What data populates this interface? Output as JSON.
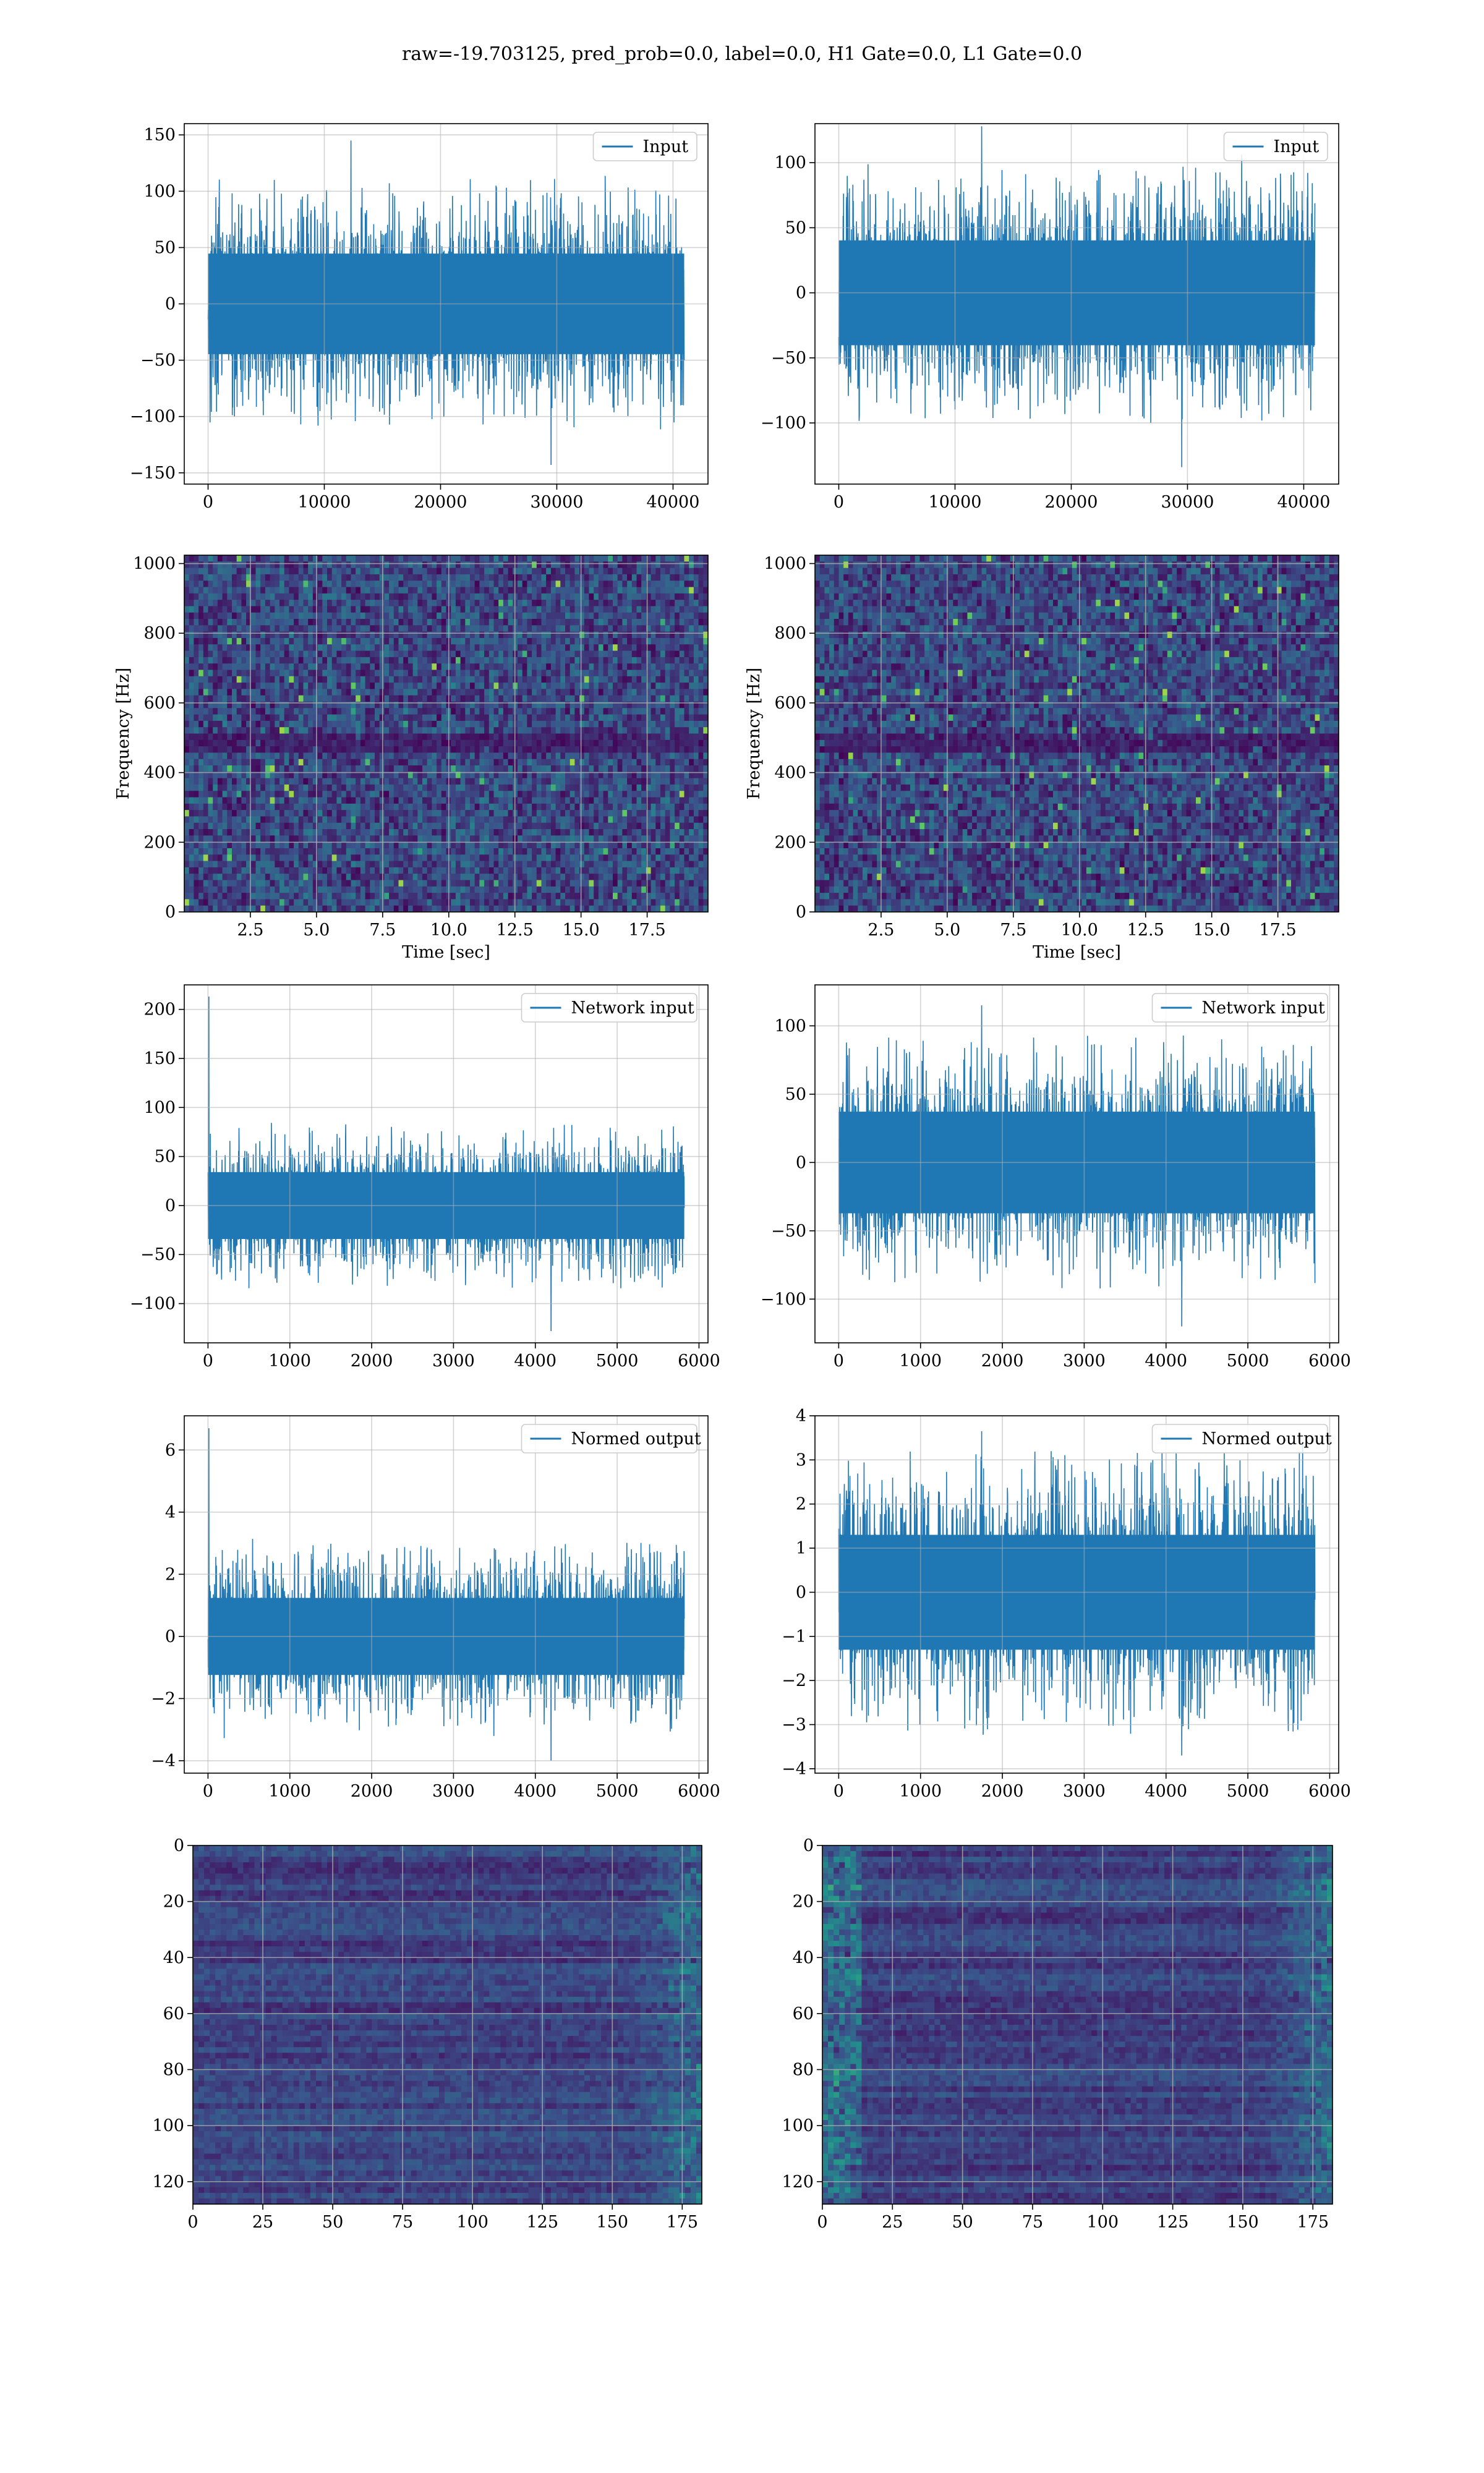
{
  "suptitle": "raw=-19.703125, pred_prob=0.0, label=0.0, H1 Gate=0.0, L1 Gate=0.0",
  "colors": {
    "series": "#1f77b4",
    "grid": "#b0b0b0",
    "viridis": [
      "#440154",
      "#3b528b",
      "#21918c",
      "#5ec962",
      "#fde725"
    ]
  },
  "chart_data": [
    {
      "id": "input-h1",
      "type": "line",
      "legend": "Input",
      "legend_loc": "upper right",
      "grid": true,
      "xlim": [
        -2048,
        43008
      ],
      "ylim": [
        -160,
        160
      ],
      "xticks": [
        0,
        10000,
        20000,
        30000,
        40000
      ],
      "xticklabels": [
        "0",
        "10000",
        "20000",
        "30000",
        "40000"
      ],
      "yticks": [
        -150,
        -100,
        -50,
        0,
        50,
        100,
        150
      ],
      "yticklabels": [
        "−150",
        "−100",
        "−50",
        "0",
        "50",
        "100",
        "150"
      ],
      "xlabel": "",
      "ylabel": "",
      "n_samples": 40960,
      "envelope": {
        "bulk": 72,
        "peak": 145,
        "trough": -143
      }
    },
    {
      "id": "input-l1",
      "type": "line",
      "legend": "Input",
      "legend_loc": "upper right",
      "grid": true,
      "xlim": [
        -2048,
        43008
      ],
      "ylim": [
        -147,
        130
      ],
      "xticks": [
        0,
        10000,
        20000,
        30000,
        40000
      ],
      "xticklabels": [
        "0",
        "10000",
        "20000",
        "30000",
        "40000"
      ],
      "yticks": [
        -100,
        -50,
        0,
        50,
        100
      ],
      "yticklabels": [
        "−100",
        "−50",
        "0",
        "50",
        "100"
      ],
      "xlabel": "",
      "ylabel": "",
      "n_samples": 40960,
      "envelope": {
        "bulk": 65,
        "peak": 128,
        "trough": -134
      }
    },
    {
      "id": "spec-h1",
      "type": "heatmap",
      "grid": true,
      "colormap": "viridis",
      "xlim": [
        0,
        19.8
      ],
      "ylim": [
        0,
        1024
      ],
      "xticks": [
        2.5,
        5.0,
        7.5,
        10.0,
        12.5,
        15.0,
        17.5
      ],
      "xticklabels": [
        "2.5",
        "5.0",
        "7.5",
        "10.0",
        "12.5",
        "15.0",
        "17.5"
      ],
      "yticks": [
        0,
        200,
        400,
        600,
        800,
        1000
      ],
      "yticklabels": [
        "0",
        "200",
        "400",
        "600",
        "800",
        "1000"
      ],
      "xlabel": "Time [sec]",
      "ylabel": "Frequency [Hz]"
    },
    {
      "id": "spec-l1",
      "type": "heatmap",
      "grid": true,
      "colormap": "viridis",
      "xlim": [
        0,
        19.8
      ],
      "ylim": [
        0,
        1024
      ],
      "xticks": [
        2.5,
        5.0,
        7.5,
        10.0,
        12.5,
        15.0,
        17.5
      ],
      "xticklabels": [
        "2.5",
        "5.0",
        "7.5",
        "10.0",
        "12.5",
        "15.0",
        "17.5"
      ],
      "yticks": [
        0,
        200,
        400,
        600,
        800,
        1000
      ],
      "yticklabels": [
        "0",
        "200",
        "400",
        "600",
        "800",
        "1000"
      ],
      "xlabel": "Time [sec]",
      "ylabel": "Frequency [Hz]"
    },
    {
      "id": "netin-h1",
      "type": "line",
      "legend": "Network input",
      "legend_loc": "upper right",
      "grid": true,
      "xlim": [
        -290,
        6110
      ],
      "ylim": [
        -140,
        225
      ],
      "xticks": [
        0,
        1000,
        2000,
        3000,
        4000,
        5000,
        6000
      ],
      "xticklabels": [
        "0",
        "1000",
        "2000",
        "3000",
        "4000",
        "5000",
        "6000"
      ],
      "yticks": [
        -100,
        -50,
        0,
        50,
        100,
        150,
        200
      ],
      "yticklabels": [
        "−100",
        "−50",
        "0",
        "50",
        "100",
        "150",
        "200"
      ],
      "xlabel": "",
      "ylabel": "",
      "n_samples": 5820,
      "envelope": {
        "bulk": 55,
        "peak": 213,
        "trough": -128
      }
    },
    {
      "id": "netin-l1",
      "type": "line",
      "legend": "Network input",
      "legend_loc": "upper right",
      "grid": true,
      "xlim": [
        -290,
        6110
      ],
      "ylim": [
        -132,
        130
      ],
      "xticks": [
        0,
        1000,
        2000,
        3000,
        4000,
        5000,
        6000
      ],
      "xticklabels": [
        "0",
        "1000",
        "2000",
        "3000",
        "4000",
        "5000",
        "6000"
      ],
      "yticks": [
        -100,
        -50,
        0,
        50,
        100
      ],
      "yticklabels": [
        "−100",
        "−50",
        "0",
        "50",
        "100"
      ],
      "xlabel": "",
      "ylabel": "",
      "n_samples": 5820,
      "envelope": {
        "bulk": 60,
        "peak": 115,
        "trough": -120
      }
    },
    {
      "id": "normed-h1",
      "type": "line",
      "legend": "Normed output",
      "legend_loc": "upper right",
      "grid": true,
      "xlim": [
        -290,
        6110
      ],
      "ylim": [
        -4.4,
        7.1
      ],
      "xticks": [
        0,
        1000,
        2000,
        3000,
        4000,
        5000,
        6000
      ],
      "xticklabels": [
        "0",
        "1000",
        "2000",
        "3000",
        "4000",
        "5000",
        "6000"
      ],
      "yticks": [
        -4,
        -2,
        0,
        2,
        4,
        6
      ],
      "yticklabels": [
        "−4",
        "−2",
        "0",
        "2",
        "4",
        "6"
      ],
      "xlabel": "",
      "ylabel": "",
      "n_samples": 5820,
      "envelope": {
        "bulk": 2.0,
        "peak": 6.7,
        "trough": -4.0
      }
    },
    {
      "id": "normed-l1",
      "type": "line",
      "legend": "Normed output",
      "legend_loc": "upper right",
      "grid": true,
      "xlim": [
        -290,
        6110
      ],
      "ylim": [
        -4.1,
        4.0
      ],
      "xticks": [
        0,
        1000,
        2000,
        3000,
        4000,
        5000,
        6000
      ],
      "xticklabels": [
        "0",
        "1000",
        "2000",
        "3000",
        "4000",
        "5000",
        "6000"
      ],
      "yticks": [
        -4,
        -3,
        -2,
        -1,
        0,
        1,
        2,
        3,
        4
      ],
      "yticklabels": [
        "−4",
        "−3",
        "−2",
        "−1",
        "0",
        "1",
        "2",
        "3",
        "4"
      ],
      "xlabel": "",
      "ylabel": "",
      "n_samples": 5820,
      "envelope": {
        "bulk": 2.1,
        "peak": 3.65,
        "trough": -3.7
      }
    },
    {
      "id": "features-h1",
      "type": "heatmap",
      "grid": true,
      "colormap": "viridis",
      "y_inverted": true,
      "xlim": [
        0,
        182
      ],
      "ylim": [
        128,
        0
      ],
      "xticks": [
        0,
        25,
        50,
        75,
        100,
        125,
        150,
        175
      ],
      "xticklabels": [
        "0",
        "25",
        "50",
        "75",
        "100",
        "125",
        "150",
        "175"
      ],
      "yticks": [
        0,
        20,
        40,
        60,
        80,
        100,
        120
      ],
      "yticklabels": [
        "0",
        "20",
        "40",
        "60",
        "80",
        "100",
        "120"
      ],
      "xlabel": "",
      "ylabel": "",
      "n_rows": 128,
      "n_cols": 182
    },
    {
      "id": "features-l1",
      "type": "heatmap",
      "grid": true,
      "colormap": "viridis",
      "y_inverted": true,
      "xlim": [
        0,
        182
      ],
      "ylim": [
        128,
        0
      ],
      "xticks": [
        0,
        25,
        50,
        75,
        100,
        125,
        150,
        175
      ],
      "xticklabels": [
        "0",
        "25",
        "50",
        "75",
        "100",
        "125",
        "150",
        "175"
      ],
      "yticks": [
        0,
        20,
        40,
        60,
        80,
        100,
        120
      ],
      "yticklabels": [
        "0",
        "20",
        "40",
        "60",
        "80",
        "100",
        "120"
      ],
      "xlabel": "",
      "ylabel": "",
      "n_rows": 128,
      "n_cols": 182
    }
  ]
}
